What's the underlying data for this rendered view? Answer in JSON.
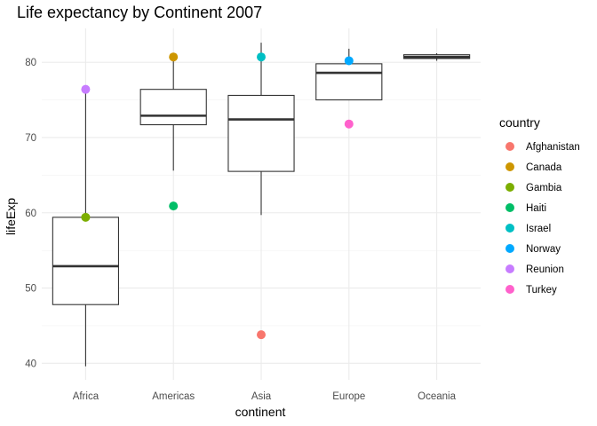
{
  "chart_data": {
    "type": "boxplot",
    "title": "Life expectancy by Continent 2007",
    "xlabel": "continent",
    "ylabel": "lifeExp",
    "ylim": [
      37.8,
      84.5
    ],
    "y_ticks": [
      40,
      50,
      60,
      70,
      80
    ],
    "grid": true,
    "categories": [
      "Africa",
      "Americas",
      "Asia",
      "Europe",
      "Oceania"
    ],
    "boxes": [
      {
        "category": "Africa",
        "min": 39.6,
        "q1": 47.8,
        "median": 52.9,
        "q3": 59.4,
        "max": 76.4
      },
      {
        "category": "Americas",
        "min": 65.6,
        "q1": 71.7,
        "median": 72.9,
        "q3": 76.4,
        "max": 80.7
      },
      {
        "category": "Asia",
        "min": 59.7,
        "q1": 65.5,
        "median": 72.4,
        "q3": 75.6,
        "max": 82.6
      },
      {
        "category": "Europe",
        "min": 75.0,
        "q1": 75.0,
        "median": 78.6,
        "q3": 79.8,
        "max": 81.8
      },
      {
        "category": "Oceania",
        "min": 80.2,
        "q1": 80.5,
        "median": 80.7,
        "q3": 81.0,
        "max": 81.2
      }
    ],
    "points": [
      {
        "country": "Afghanistan",
        "category": "Asia",
        "value": 43.8
      },
      {
        "country": "Canada",
        "category": "Americas",
        "value": 80.7
      },
      {
        "country": "Gambia",
        "category": "Africa",
        "value": 59.4
      },
      {
        "country": "Haiti",
        "category": "Americas",
        "value": 60.9
      },
      {
        "country": "Israel",
        "category": "Asia",
        "value": 80.7
      },
      {
        "country": "Norway",
        "category": "Europe",
        "value": 80.2
      },
      {
        "country": "Reunion",
        "category": "Africa",
        "value": 76.4
      },
      {
        "country": "Turkey",
        "category": "Europe",
        "value": 71.8
      }
    ],
    "legend": {
      "title": "country",
      "placement": "right",
      "items": [
        {
          "label": "Afghanistan",
          "color": "#F8766D"
        },
        {
          "label": "Canada",
          "color": "#CD9600"
        },
        {
          "label": "Gambia",
          "color": "#7CAE00"
        },
        {
          "label": "Haiti",
          "color": "#00BE67"
        },
        {
          "label": "Israel",
          "color": "#00BFC4"
        },
        {
          "label": "Norway",
          "color": "#00A9FF"
        },
        {
          "label": "Reunion",
          "color": "#C77CFF"
        },
        {
          "label": "Turkey",
          "color": "#FF61CC"
        }
      ]
    }
  }
}
